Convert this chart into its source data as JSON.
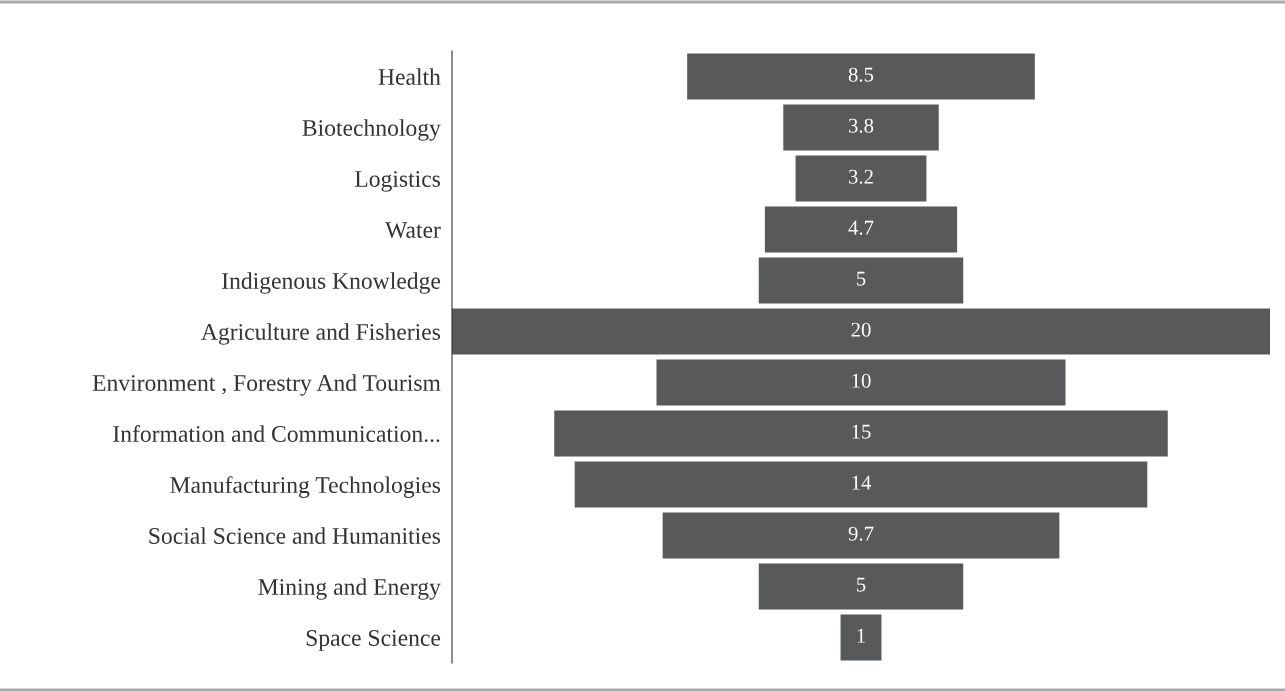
{
  "chart_data": {
    "type": "other",
    "categories": [
      "Health",
      "Biotechnology",
      "Logistics",
      "Water",
      "Indigenous Knowledge",
      "Agriculture and Fisheries",
      "Environment , Forestry And Tourism",
      "Information and Communication...",
      "Manufacturing Technologies",
      "Social Science and Humanities",
      "Mining and Energy",
      "Space Science"
    ],
    "values": [
      8.5,
      3.8,
      3.2,
      4.7,
      5,
      20,
      10,
      15,
      14,
      9.7,
      5,
      1
    ],
    "color": "#58595b",
    "data_labels": true
  }
}
